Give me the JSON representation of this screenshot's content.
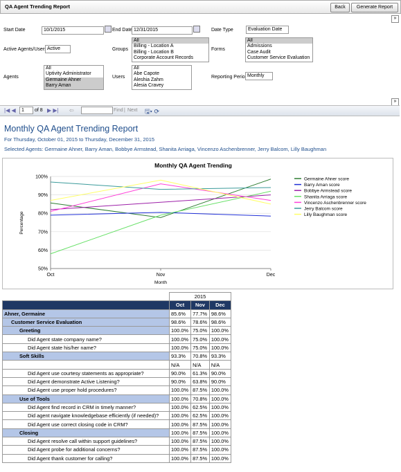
{
  "header": {
    "title": "QA Agent Trending Report",
    "buttons": [
      "Back",
      "Generate Report"
    ]
  },
  "filters": {
    "start_date": {
      "label": "Start Date",
      "value": "10/1/2015"
    },
    "end_date": {
      "label": "End Date",
      "value": "12/31/2015"
    },
    "date_type": {
      "label": "Date Type",
      "value": "Evaluation Date"
    },
    "active": {
      "label": "Active Agents/Users",
      "value": "Active"
    },
    "groups": {
      "label": "Groups",
      "items": [
        "All",
        "Billing - Location A",
        "Billing - Location B",
        "Corporate Account Records"
      ],
      "selected": [
        0
      ]
    },
    "forms": {
      "label": "Forms",
      "items": [
        "All",
        "Admissions",
        "Case Audit",
        "Customer Service Evaluation"
      ],
      "selected": [
        0
      ]
    },
    "agents": {
      "label": "Agents",
      "items": [
        "All",
        "Uptivity Administrator",
        "Germaine Ahner",
        "Barry Aman"
      ],
      "selected": [
        2,
        3
      ]
    },
    "users": {
      "label": "Users",
      "items": [
        "All",
        "Abe Capote",
        "Aleshia Zahm",
        "Alesia Cravey"
      ],
      "selected": []
    },
    "period": {
      "label": "Reporting Period",
      "value": "Monthly"
    }
  },
  "toolbar": {
    "page": "1",
    "of": "of 8",
    "find": "Find",
    "sep": "|",
    "next": "Next"
  },
  "report": {
    "title": "Monthly QA Agent Trending Report",
    "subtitle": "For Thursday, October 01, 2015 to Thursday, December 31, 2015",
    "agents": "Selected Agents: Germaine Ahner, Barry Aman, Bobbye Armstead, Shanita Arriaga, Vincenzo Aschenbrenner, Jerry Balcom, Lilly Baughman"
  },
  "chart_data": {
    "type": "line",
    "title": "Monthly QA Agent Trending",
    "x_label": "Month",
    "y_label": "Percentage",
    "categories": [
      "Oct",
      "Nov",
      "Dec"
    ],
    "ylim": [
      50,
      100
    ],
    "yticks": [
      {
        "value": 50,
        "label": "50%"
      },
      {
        "value": 60,
        "label": "60%"
      },
      {
        "value": 70,
        "label": "70%"
      },
      {
        "value": 80,
        "label": "80%"
      },
      {
        "value": 90,
        "label": "90%"
      },
      {
        "value": 100,
        "label": "100%"
      }
    ],
    "grid": true,
    "legend": "right",
    "series": [
      {
        "name": "Germaine Ahner score",
        "color": "#2e7d32",
        "values": [
          85.6,
          77.7,
          98.6
        ]
      },
      {
        "name": "Barry Aman score",
        "color": "#1f2fd6",
        "values": [
          79,
          80.5,
          78.5
        ]
      },
      {
        "name": "Bobbye Armstead score",
        "color": "#9c1fa8",
        "values": [
          82,
          86,
          90
        ]
      },
      {
        "name": "Shanita Arriaga score",
        "color": "#66e066",
        "values": [
          58,
          79,
          92
        ]
      },
      {
        "name": "Vincenzo Aschenbrenner score",
        "color": "#ff3fd9",
        "values": [
          81,
          96,
          87
        ]
      },
      {
        "name": "Jerry Balcom score",
        "color": "#3a9a9a",
        "values": [
          97,
          93,
          94
        ]
      },
      {
        "name": "Lilly Baughman score",
        "color": "#ffff66",
        "values": [
          87,
          98,
          85
        ]
      }
    ]
  },
  "table": {
    "year": "2015",
    "columns": [
      "Oct",
      "Nov",
      "Dec"
    ],
    "rows": [
      {
        "label": "Ahner, Germaine",
        "level": 0,
        "values": [
          "85.6%",
          "77.7%",
          "98.6%"
        ]
      },
      {
        "label": "Customer Service Evaluation",
        "level": 1,
        "values": [
          "98.6%",
          "78.6%",
          "98.6%"
        ]
      },
      {
        "label": "Greeting",
        "level": 2,
        "values": [
          "100.0%",
          "75.0%",
          "100.0%"
        ]
      },
      {
        "label": "Did Agent state company name?",
        "level": 3,
        "values": [
          "100.0%",
          "75.0%",
          "100.0%"
        ]
      },
      {
        "label": "Did Agent state his/her name?",
        "level": 3,
        "values": [
          "100.0%",
          "75.0%",
          "100.0%"
        ]
      },
      {
        "label": "Soft Skills",
        "level": 2,
        "values": [
          "93.3%",
          "70.8%",
          "93.3%"
        ]
      },
      {
        "label": null,
        "level": 3,
        "values": [
          "N/A",
          "N/A",
          "N/A"
        ]
      },
      {
        "label": "Did Agent use courtesy statements as appropriate?",
        "level": 3,
        "values": [
          "90.0%",
          "61.3%",
          "90.0%"
        ]
      },
      {
        "label": "Did Agent demonstrate Active Listening?",
        "level": 3,
        "values": [
          "90.0%",
          "63.8%",
          "90.0%"
        ]
      },
      {
        "label": "Did Agent use proper hold procedures?",
        "level": 3,
        "values": [
          "100.0%",
          "87.5%",
          "100.0%"
        ]
      },
      {
        "label": "Use of Tools",
        "level": 2,
        "values": [
          "100.0%",
          "70.8%",
          "100.0%"
        ]
      },
      {
        "label": "Did Agent find record in CRM in timely manner?",
        "level": 3,
        "values": [
          "100.0%",
          "62.5%",
          "100.0%"
        ]
      },
      {
        "label": "Did agent navigate knowledgebase efficiently (if needed)?",
        "level": 3,
        "values": [
          "100.0%",
          "62.5%",
          "100.0%"
        ]
      },
      {
        "label": "Did Agent use correct closing code in CRM?",
        "level": 3,
        "values": [
          "100.0%",
          "87.5%",
          "100.0%"
        ]
      },
      {
        "label": "Closing",
        "level": 2,
        "values": [
          "100.0%",
          "87.5%",
          "100.0%"
        ]
      },
      {
        "label": "Did Agent resolve call within support guidelines?",
        "level": 3,
        "values": [
          "100.0%",
          "87.5%",
          "100.0%"
        ]
      },
      {
        "label": "Did Agent probe for additional concerns?",
        "level": 3,
        "values": [
          "100.0%",
          "87.5%",
          "100.0%"
        ]
      },
      {
        "label": "Did Agent thank customer for calling?",
        "level": 3,
        "values": [
          "100.0%",
          "87.5%",
          "100.0%"
        ]
      }
    ]
  }
}
